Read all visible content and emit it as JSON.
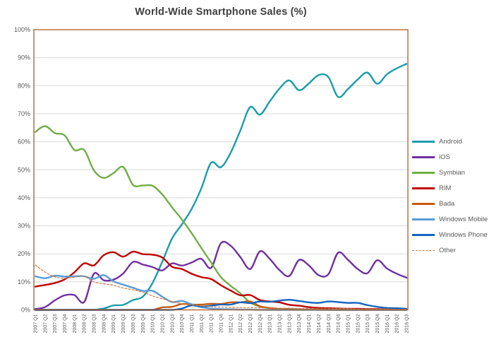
{
  "chart_data": {
    "type": "line",
    "title": "World-Wide Smartphone Sales (%)",
    "xlabel": "",
    "ylabel": "",
    "ylim": [
      0,
      100
    ],
    "ytick_step": 10,
    "yticks": [
      "0%",
      "10%",
      "20%",
      "30%",
      "40%",
      "50%",
      "60%",
      "70%",
      "80%",
      "90%",
      "100%"
    ],
    "grid": true,
    "legend_position": "right",
    "line_smoothing": true,
    "categories": [
      "2007 Q1",
      "2007 Q2",
      "2007 Q3",
      "2007 Q4",
      "2008 Q1",
      "2008 Q2",
      "2008 Q3",
      "2008 Q4",
      "2009 Q1",
      "2009 Q2",
      "2009 Q3",
      "2009 Q4",
      "2010 Q1",
      "2010 Q2",
      "2010 Q3",
      "2010 Q4",
      "2011 Q1",
      "2011 Q2",
      "2011 Q3",
      "2011 Q4",
      "2012 Q1",
      "2012 Q2",
      "2012 Q3",
      "2012 Q4",
      "2013 Q1",
      "2013 Q2",
      "2013 Q3",
      "2013 Q4",
      "2014 Q1",
      "2014 Q2",
      "2014 Q3",
      "2014 Q4",
      "2015 Q1",
      "2015 Q2",
      "2015 Q3",
      "2015 Q4",
      "2016 Q1",
      "2016 Q2",
      "2016 Q3"
    ],
    "series": [
      {
        "name": "Android",
        "color": "#1B9DAA",
        "line": "solid",
        "values": [
          0,
          0,
          0,
          0,
          0,
          0,
          0,
          0.5,
          1.6,
          1.8,
          3.5,
          4.7,
          9.6,
          17.2,
          25.5,
          30.5,
          36,
          43.4,
          52.5,
          50.9,
          56.1,
          64.1,
          72.4,
          69.7,
          74.4,
          79,
          81.9,
          78.4,
          80.8,
          83.8,
          83.1,
          76,
          78.8,
          82.2,
          84.7,
          80.7,
          84.1,
          86.2,
          87.8
        ]
      },
      {
        "name": "iOS",
        "color": "#7030A0",
        "line": "solid",
        "values": [
          0.3,
          1,
          3.4,
          5.2,
          5.3,
          2.8,
          12.9,
          10.6,
          10.8,
          13,
          17.1,
          16.2,
          15.3,
          14.1,
          16.6,
          15.8,
          16.9,
          18.2,
          15,
          23.8,
          22.9,
          18.8,
          14.6,
          20.9,
          18.2,
          14.2,
          12.1,
          17.8,
          15.9,
          12.4,
          12.7,
          20.4,
          17.9,
          14.6,
          13.1,
          17.7,
          14.8,
          12.9,
          11.5
        ]
      },
      {
        "name": "Symbian",
        "color": "#70AD47",
        "line": "solid",
        "values": [
          63.5,
          65.6,
          63.1,
          62.3,
          57.1,
          57.1,
          49.8,
          47.1,
          48.8,
          51,
          44.6,
          44.4,
          44.3,
          41.2,
          36.6,
          32.3,
          27.4,
          22.1,
          16.9,
          11.7,
          8.6,
          5.9,
          2.6,
          1.2,
          0.6,
          0.3,
          0.2,
          0.1,
          0.1,
          0,
          0,
          0,
          0,
          0,
          0,
          0,
          0,
          0,
          0
        ]
      },
      {
        "name": "RIM",
        "color": "#C00000",
        "line": "solid",
        "values": [
          8.3,
          8.9,
          9.6,
          10.9,
          13.4,
          16.6,
          15.9,
          19.5,
          20.6,
          19,
          20.8,
          19.9,
          19.7,
          18.7,
          15.4,
          14.6,
          12.9,
          11.7,
          11,
          8.8,
          6.9,
          5.2,
          5.3,
          3.5,
          3,
          2.7,
          1.8,
          1.5,
          1,
          0.7,
          0.6,
          0.5,
          0.4,
          0.4,
          0.3,
          0.3,
          0.2,
          0.2,
          0.1
        ]
      },
      {
        "name": "Bada",
        "color": "#C55A11",
        "line": "solid",
        "values": [
          0,
          0,
          0,
          0,
          0,
          0,
          0,
          0,
          0,
          0,
          0,
          0,
          0,
          0.9,
          1.1,
          2.1,
          1.9,
          1.9,
          2.2,
          2.1,
          2.7,
          2.7,
          3,
          1.3,
          0.7,
          0.4,
          0.3,
          0.2,
          0.1,
          0.1,
          0,
          0,
          0,
          0,
          0,
          0,
          0,
          0,
          0
        ]
      },
      {
        "name": "Windows Mobile",
        "color": "#5B9BD5",
        "line": "solid",
        "values": [
          12,
          11.3,
          12.2,
          11.9,
          12,
          12,
          11.1,
          12.4,
          10.2,
          9,
          7.9,
          6.8,
          6.8,
          4.7,
          2.8,
          3.2,
          2,
          1,
          0.5,
          0.3,
          0.2,
          0.1,
          0.1,
          0,
          0,
          0,
          0,
          0,
          0,
          0,
          0,
          0,
          0,
          0,
          0,
          0,
          0,
          0,
          0
        ]
      },
      {
        "name": "Windows Phone",
        "color": "#1565C0",
        "line": "solid",
        "values": [
          0,
          0,
          0,
          0,
          0,
          0,
          0,
          0,
          0,
          0,
          0,
          0,
          0,
          0,
          0,
          0.5,
          1.6,
          1.2,
          1.5,
          1.9,
          1.9,
          2.7,
          2.4,
          3,
          2.9,
          3.3,
          3.6,
          3.2,
          2.7,
          2.5,
          3,
          2.8,
          2.5,
          2.5,
          1.7,
          1.1,
          0.7,
          0.6,
          0.4
        ]
      },
      {
        "name": "Other",
        "color": "#C87E48",
        "line": "dashed",
        "values": [
          16,
          13.5,
          11.8,
          11.3,
          11.7,
          12,
          10,
          9.3,
          8.8,
          7.8,
          7.2,
          6.3,
          5,
          4,
          3,
          2.2,
          1.8,
          1.4,
          1.2,
          1,
          0.9,
          0.8,
          0.8,
          0.7,
          0.7,
          0.6,
          0.6,
          0.5,
          0.5,
          0.4,
          0.4,
          0.4,
          0.4,
          0.3,
          0.3,
          0.3,
          0.3,
          0.2,
          0.2
        ]
      }
    ]
  },
  "colors": {
    "plot_border": "#AE5A21",
    "gridline": "#D9D9D9",
    "axis_text": "#595959",
    "title_text": "#3F3F3F"
  }
}
